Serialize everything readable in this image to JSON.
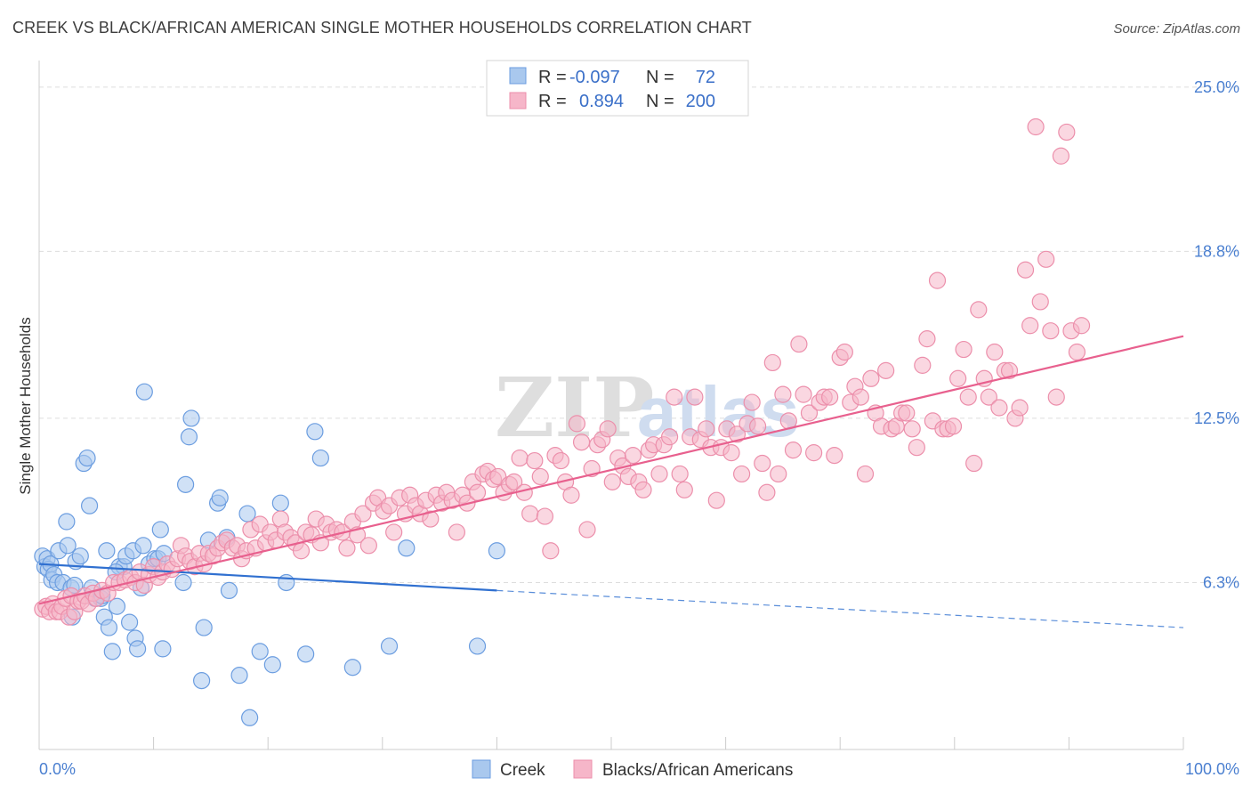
{
  "title": "CREEK VS BLACK/AFRICAN AMERICAN SINGLE MOTHER HOUSEHOLDS CORRELATION CHART",
  "source": "Source: ZipAtlas.com",
  "watermark": {
    "part1": "ZIP",
    "part2": "atlas"
  },
  "colors": {
    "creek_fill": "#a9c8ee",
    "creek_stroke": "#6b9de0",
    "creek_line": "#3070d0",
    "black_fill": "#f6b6c9",
    "black_stroke": "#ec8fab",
    "black_line": "#e8608e",
    "axis_text": "#4a7fd0",
    "grid": "#dddddd"
  },
  "legend": {
    "rows": [
      {
        "r_label": "R =",
        "r_value": "-0.097",
        "n_label": "N =",
        "n_value": "72"
      },
      {
        "r_label": "R =",
        "r_value": "0.894",
        "n_label": "N =",
        "n_value": "200"
      }
    ]
  },
  "chart_data": {
    "type": "scatter",
    "title": "CREEK VS BLACK/AFRICAN AMERICAN SINGLE MOTHER HOUSEHOLDS CORRELATION CHART",
    "xlabel": "",
    "ylabel": "Single Mother Households",
    "xlim": [
      0,
      100
    ],
    "ylim": [
      0,
      25.6
    ],
    "x_tick_labels": [
      "0.0%",
      "100.0%"
    ],
    "y_ticks": [
      6.3,
      12.5,
      18.8,
      25.0
    ],
    "y_tick_labels": [
      "6.3%",
      "12.5%",
      "18.8%",
      "25.0%"
    ],
    "grid": true,
    "legend_position": "top-center",
    "series": [
      {
        "name": "Creek",
        "color": "#a9c8ee",
        "trend": {
          "x": [
            0,
            40
          ],
          "y": [
            7.0,
            6.0
          ],
          "dashed_extension_to": [
            100,
            4.6
          ]
        },
        "points": [
          [
            0.3,
            7.3
          ],
          [
            0.5,
            6.9
          ],
          [
            0.7,
            7.2
          ],
          [
            0.8,
            6.8
          ],
          [
            1.0,
            7.0
          ],
          [
            1.1,
            6.4
          ],
          [
            1.3,
            6.6
          ],
          [
            1.6,
            6.3
          ],
          [
            1.7,
            7.5
          ],
          [
            2.1,
            6.3
          ],
          [
            2.4,
            8.6
          ],
          [
            2.5,
            7.7
          ],
          [
            2.8,
            6.1
          ],
          [
            2.9,
            5.0
          ],
          [
            3.2,
            7.1
          ],
          [
            3.6,
            7.3
          ],
          [
            3.9,
            10.8
          ],
          [
            4.2,
            11.0
          ],
          [
            4.4,
            9.2
          ],
          [
            4.6,
            6.1
          ],
          [
            4.9,
            5.7
          ],
          [
            5.4,
            5.7
          ],
          [
            5.7,
            5.0
          ],
          [
            5.9,
            7.5
          ],
          [
            6.1,
            4.6
          ],
          [
            6.4,
            3.7
          ],
          [
            6.8,
            5.4
          ],
          [
            7.0,
            6.9
          ],
          [
            7.4,
            6.9
          ],
          [
            7.6,
            7.3
          ],
          [
            7.9,
            4.8
          ],
          [
            8.2,
            7.5
          ],
          [
            8.4,
            4.2
          ],
          [
            8.6,
            3.8
          ],
          [
            8.9,
            6.1
          ],
          [
            9.1,
            7.7
          ],
          [
            9.2,
            13.5
          ],
          [
            9.6,
            7.0
          ],
          [
            10.1,
            7.2
          ],
          [
            10.4,
            7.2
          ],
          [
            10.6,
            8.3
          ],
          [
            10.8,
            3.8
          ],
          [
            10.9,
            7.4
          ],
          [
            12.6,
            6.3
          ],
          [
            12.8,
            10.0
          ],
          [
            13.1,
            11.8
          ],
          [
            13.3,
            12.5
          ],
          [
            14.2,
            2.6
          ],
          [
            14.4,
            4.6
          ],
          [
            14.8,
            7.9
          ],
          [
            15.6,
            9.3
          ],
          [
            15.8,
            9.5
          ],
          [
            16.4,
            8.0
          ],
          [
            16.6,
            6.0
          ],
          [
            17.5,
            2.8
          ],
          [
            18.2,
            8.9
          ],
          [
            18.4,
            1.2
          ],
          [
            19.3,
            3.7
          ],
          [
            20.4,
            3.2
          ],
          [
            21.1,
            9.3
          ],
          [
            21.6,
            6.3
          ],
          [
            23.3,
            3.6
          ],
          [
            24.1,
            12.0
          ],
          [
            24.6,
            11.0
          ],
          [
            27.4,
            3.1
          ],
          [
            30.6,
            3.9
          ],
          [
            32.1,
            7.6
          ],
          [
            38.3,
            3.9
          ],
          [
            40.0,
            7.5
          ],
          [
            5.5,
            5.8
          ],
          [
            3.1,
            6.2
          ],
          [
            6.7,
            6.7
          ]
        ]
      },
      {
        "name": "Blacks/African Americans",
        "color": "#f6b6c9",
        "trend": {
          "x": [
            0,
            100
          ],
          "y": [
            5.5,
            15.6
          ]
        },
        "points": [
          [
            0.3,
            5.3
          ],
          [
            0.6,
            5.4
          ],
          [
            0.9,
            5.2
          ],
          [
            1.2,
            5.5
          ],
          [
            1.5,
            5.2
          ],
          [
            1.8,
            5.2
          ],
          [
            2.0,
            5.4
          ],
          [
            2.3,
            5.7
          ],
          [
            2.6,
            5.0
          ],
          [
            2.8,
            5.8
          ],
          [
            3.1,
            5.2
          ],
          [
            3.4,
            5.6
          ],
          [
            3.7,
            5.6
          ],
          [
            4.0,
            5.8
          ],
          [
            4.3,
            5.5
          ],
          [
            4.7,
            5.9
          ],
          [
            5.0,
            5.7
          ],
          [
            5.5,
            6.0
          ],
          [
            6.0,
            5.9
          ],
          [
            6.5,
            6.3
          ],
          [
            7.0,
            6.3
          ],
          [
            7.5,
            6.4
          ],
          [
            8.0,
            6.5
          ],
          [
            8.4,
            6.3
          ],
          [
            8.8,
            6.7
          ],
          [
            9.2,
            6.2
          ],
          [
            9.6,
            6.6
          ],
          [
            10.0,
            6.9
          ],
          [
            10.4,
            6.5
          ],
          [
            10.8,
            6.7
          ],
          [
            11.2,
            7.0
          ],
          [
            11.6,
            6.8
          ],
          [
            12.1,
            7.2
          ],
          [
            12.4,
            7.7
          ],
          [
            12.8,
            7.3
          ],
          [
            13.2,
            7.1
          ],
          [
            13.6,
            6.9
          ],
          [
            14.0,
            7.4
          ],
          [
            14.4,
            7.0
          ],
          [
            14.8,
            7.4
          ],
          [
            15.2,
            7.3
          ],
          [
            15.6,
            7.6
          ],
          [
            16.0,
            7.8
          ],
          [
            16.4,
            7.9
          ],
          [
            16.9,
            7.6
          ],
          [
            17.3,
            7.7
          ],
          [
            17.7,
            7.2
          ],
          [
            18.1,
            7.5
          ],
          [
            18.5,
            8.3
          ],
          [
            18.9,
            7.6
          ],
          [
            19.3,
            8.5
          ],
          [
            19.8,
            7.8
          ],
          [
            20.2,
            8.2
          ],
          [
            20.7,
            7.9
          ],
          [
            21.1,
            8.7
          ],
          [
            21.5,
            8.2
          ],
          [
            22.0,
            8.0
          ],
          [
            22.4,
            7.8
          ],
          [
            22.9,
            7.5
          ],
          [
            23.3,
            8.2
          ],
          [
            23.8,
            8.1
          ],
          [
            24.2,
            8.7
          ],
          [
            24.6,
            7.8
          ],
          [
            25.1,
            8.5
          ],
          [
            25.5,
            8.2
          ],
          [
            26.0,
            8.3
          ],
          [
            26.5,
            8.2
          ],
          [
            26.9,
            7.6
          ],
          [
            27.4,
            8.6
          ],
          [
            27.8,
            8.1
          ],
          [
            28.3,
            8.9
          ],
          [
            28.8,
            7.7
          ],
          [
            29.2,
            9.3
          ],
          [
            29.6,
            9.5
          ],
          [
            30.1,
            9.0
          ],
          [
            30.6,
            9.2
          ],
          [
            31.0,
            8.2
          ],
          [
            31.5,
            9.5
          ],
          [
            32.0,
            8.9
          ],
          [
            32.4,
            9.6
          ],
          [
            32.9,
            9.2
          ],
          [
            33.3,
            8.9
          ],
          [
            33.8,
            9.4
          ],
          [
            34.2,
            8.7
          ],
          [
            34.7,
            9.6
          ],
          [
            35.2,
            9.3
          ],
          [
            35.6,
            9.7
          ],
          [
            36.1,
            9.4
          ],
          [
            36.5,
            8.2
          ],
          [
            37.0,
            9.6
          ],
          [
            37.4,
            9.3
          ],
          [
            37.9,
            10.1
          ],
          [
            38.3,
            9.7
          ],
          [
            38.8,
            10.4
          ],
          [
            39.2,
            10.5
          ],
          [
            39.7,
            10.2
          ],
          [
            40.1,
            10.3
          ],
          [
            40.6,
            9.7
          ],
          [
            41.1,
            10.0
          ],
          [
            41.5,
            10.1
          ],
          [
            42.0,
            11.0
          ],
          [
            42.4,
            9.7
          ],
          [
            42.9,
            8.9
          ],
          [
            43.3,
            10.9
          ],
          [
            43.8,
            10.3
          ],
          [
            44.2,
            8.8
          ],
          [
            44.7,
            7.5
          ],
          [
            45.1,
            11.1
          ],
          [
            45.6,
            10.9
          ],
          [
            46.0,
            10.1
          ],
          [
            46.5,
            9.6
          ],
          [
            47.0,
            12.3
          ],
          [
            47.4,
            11.6
          ],
          [
            47.9,
            8.3
          ],
          [
            48.3,
            10.6
          ],
          [
            48.8,
            11.5
          ],
          [
            49.2,
            11.7
          ],
          [
            49.7,
            12.1
          ],
          [
            50.1,
            10.1
          ],
          [
            50.6,
            11.0
          ],
          [
            51.0,
            10.7
          ],
          [
            51.5,
            10.3
          ],
          [
            51.9,
            11.1
          ],
          [
            52.4,
            10.1
          ],
          [
            52.8,
            9.8
          ],
          [
            53.3,
            11.3
          ],
          [
            53.7,
            11.5
          ],
          [
            54.2,
            10.4
          ],
          [
            54.6,
            11.5
          ],
          [
            55.1,
            11.8
          ],
          [
            55.5,
            13.3
          ],
          [
            56.0,
            10.4
          ],
          [
            56.4,
            9.8
          ],
          [
            56.9,
            11.8
          ],
          [
            57.3,
            13.3
          ],
          [
            57.8,
            11.7
          ],
          [
            58.3,
            12.1
          ],
          [
            58.7,
            11.4
          ],
          [
            59.2,
            9.4
          ],
          [
            59.6,
            11.4
          ],
          [
            60.1,
            12.1
          ],
          [
            60.5,
            11.2
          ],
          [
            61.0,
            11.9
          ],
          [
            61.4,
            10.4
          ],
          [
            61.9,
            12.3
          ],
          [
            62.3,
            13.1
          ],
          [
            62.8,
            12.2
          ],
          [
            63.2,
            10.8
          ],
          [
            63.6,
            9.7
          ],
          [
            64.1,
            14.6
          ],
          [
            64.6,
            10.4
          ],
          [
            65.0,
            13.4
          ],
          [
            65.5,
            12.4
          ],
          [
            65.9,
            11.3
          ],
          [
            66.4,
            15.3
          ],
          [
            66.8,
            13.4
          ],
          [
            67.3,
            12.7
          ],
          [
            67.7,
            11.2
          ],
          [
            68.2,
            13.1
          ],
          [
            68.6,
            13.3
          ],
          [
            69.1,
            13.3
          ],
          [
            69.5,
            11.1
          ],
          [
            70.0,
            14.8
          ],
          [
            70.4,
            15.0
          ],
          [
            70.9,
            13.1
          ],
          [
            71.3,
            13.7
          ],
          [
            71.8,
            13.3
          ],
          [
            72.2,
            10.4
          ],
          [
            72.7,
            14.0
          ],
          [
            73.1,
            12.7
          ],
          [
            73.6,
            12.2
          ],
          [
            74.0,
            14.3
          ],
          [
            74.5,
            12.1
          ],
          [
            74.9,
            12.2
          ],
          [
            75.4,
            12.7
          ],
          [
            75.8,
            12.7
          ],
          [
            76.3,
            12.1
          ],
          [
            76.7,
            11.4
          ],
          [
            77.2,
            14.5
          ],
          [
            77.6,
            15.5
          ],
          [
            78.1,
            12.4
          ],
          [
            78.5,
            17.7
          ],
          [
            79.0,
            12.1
          ],
          [
            79.4,
            12.1
          ],
          [
            79.9,
            12.2
          ],
          [
            80.3,
            14.0
          ],
          [
            80.8,
            15.1
          ],
          [
            81.2,
            13.3
          ],
          [
            81.7,
            10.8
          ],
          [
            82.1,
            16.6
          ],
          [
            82.6,
            14.0
          ],
          [
            83.0,
            13.3
          ],
          [
            83.5,
            15.0
          ],
          [
            83.9,
            12.9
          ],
          [
            84.4,
            14.3
          ],
          [
            84.8,
            14.3
          ],
          [
            85.3,
            12.5
          ],
          [
            85.7,
            12.9
          ],
          [
            86.2,
            18.1
          ],
          [
            86.6,
            16.0
          ],
          [
            87.1,
            23.5
          ],
          [
            87.5,
            16.9
          ],
          [
            88.0,
            18.5
          ],
          [
            88.4,
            15.8
          ],
          [
            88.9,
            13.3
          ],
          [
            89.3,
            22.4
          ],
          [
            89.8,
            23.3
          ],
          [
            90.2,
            15.8
          ],
          [
            90.7,
            15.0
          ],
          [
            91.1,
            16.0
          ]
        ]
      }
    ]
  },
  "bottom_legend": [
    {
      "label": "Creek"
    },
    {
      "label": "Blacks/African Americans"
    }
  ]
}
